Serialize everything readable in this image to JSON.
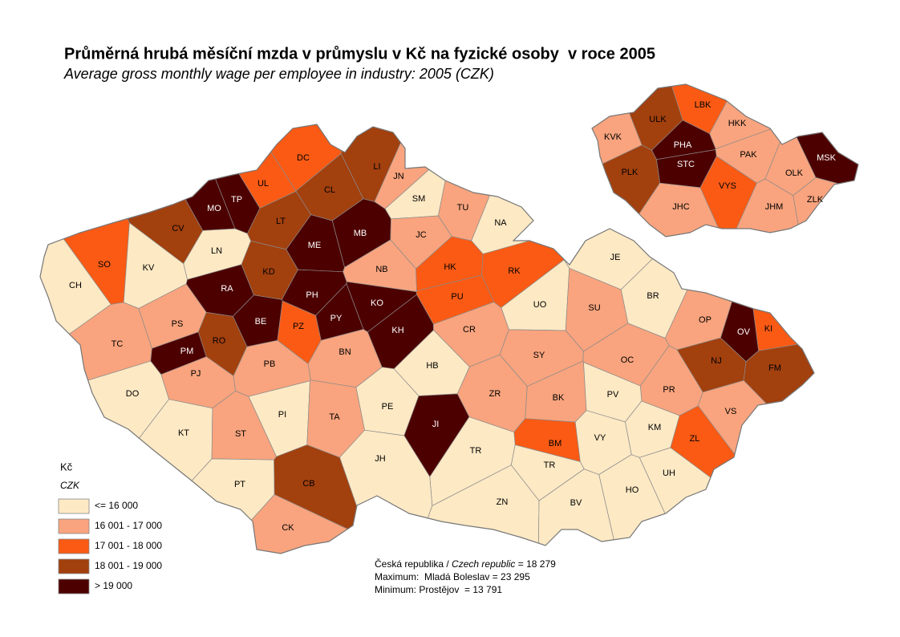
{
  "title": "Průměrná hrubá měsíční mzda v průmyslu v Kč na fyzické osoby  v roce 2005",
  "subtitle": "Average gross monthly wage per employee in industry: 2005 (CZK)",
  "legend": {
    "title": "Kč",
    "subtitle": "CZK",
    "classes": [
      {
        "label": "<= 16 000",
        "color": "#fde9c4"
      },
      {
        "label": "16 001 - 17 000",
        "color": "#f9a47e"
      },
      {
        "label": "17 001 - 18 000",
        "color": "#fa5a14"
      },
      {
        "label": "18 001 - 19 000",
        "color": "#a2400e"
      },
      {
        "label": "> 19 000",
        "color": "#4d0000"
      }
    ]
  },
  "districts": [
    {
      "code": "CH",
      "class": 0
    },
    {
      "code": "SO",
      "class": 2
    },
    {
      "code": "KV",
      "class": 0
    },
    {
      "code": "CV",
      "class": 3
    },
    {
      "code": "MO",
      "class": 4
    },
    {
      "code": "TP",
      "class": 4
    },
    {
      "code": "UL",
      "class": 2
    },
    {
      "code": "DC",
      "class": 2
    },
    {
      "code": "CL",
      "class": 3
    },
    {
      "code": "LI",
      "class": 3
    },
    {
      "code": "JN",
      "class": 1
    },
    {
      "code": "SM",
      "class": 0
    },
    {
      "code": "TU",
      "class": 1
    },
    {
      "code": "NA",
      "class": 0
    },
    {
      "code": "LT",
      "class": 3
    },
    {
      "code": "LN",
      "class": 0
    },
    {
      "code": "ME",
      "class": 4
    },
    {
      "code": "MB",
      "class": 4
    },
    {
      "code": "JC",
      "class": 1
    },
    {
      "code": "KD",
      "class": 3
    },
    {
      "code": "RA",
      "class": 4
    },
    {
      "code": "NB",
      "class": 1
    },
    {
      "code": "HK",
      "class": 2
    },
    {
      "code": "RK",
      "class": 2
    },
    {
      "code": "PH",
      "class": 4
    },
    {
      "code": "KO",
      "class": 4
    },
    {
      "code": "PU",
      "class": 2
    },
    {
      "code": "UO",
      "class": 0
    },
    {
      "code": "SU",
      "class": 1
    },
    {
      "code": "BR",
      "class": 0
    },
    {
      "code": "JE",
      "class": 0
    },
    {
      "code": "PS",
      "class": 1
    },
    {
      "code": "BE",
      "class": 4
    },
    {
      "code": "PZ",
      "class": 2
    },
    {
      "code": "PY",
      "class": 4
    },
    {
      "code": "KH",
      "class": 4
    },
    {
      "code": "CR",
      "class": 1
    },
    {
      "code": "OP",
      "class": 1
    },
    {
      "code": "OV",
      "class": 4
    },
    {
      "code": "KI",
      "class": 2
    },
    {
      "code": "TC",
      "class": 1
    },
    {
      "code": "PM",
      "class": 4
    },
    {
      "code": "RO",
      "class": 3
    },
    {
      "code": "BN",
      "class": 1
    },
    {
      "code": "SY",
      "class": 1
    },
    {
      "code": "OC",
      "class": 1
    },
    {
      "code": "NJ",
      "class": 3
    },
    {
      "code": "FM",
      "class": 3
    },
    {
      "code": "PJ",
      "class": 1
    },
    {
      "code": "PB",
      "class": 1
    },
    {
      "code": "HB",
      "class": 0
    },
    {
      "code": "DO",
      "class": 0
    },
    {
      "code": "PR",
      "class": 1
    },
    {
      "code": "ZR",
      "class": 1
    },
    {
      "code": "BK",
      "class": 1
    },
    {
      "code": "PV",
      "class": 0
    },
    {
      "code": "PE",
      "class": 0
    },
    {
      "code": "PI",
      "class": 0
    },
    {
      "code": "TA",
      "class": 1
    },
    {
      "code": "VS",
      "class": 1
    },
    {
      "code": "KT",
      "class": 0
    },
    {
      "code": "ST",
      "class": 1
    },
    {
      "code": "JI",
      "class": 4
    },
    {
      "code": "KM",
      "class": 0
    },
    {
      "code": "VY",
      "class": 0
    },
    {
      "code": "ZL",
      "class": 2
    },
    {
      "code": "BM",
      "class": 2
    },
    {
      "code": "TR",
      "class": 0
    },
    {
      "code": "JH",
      "class": 0
    },
    {
      "code": "TR",
      "class": 0
    },
    {
      "code": "UH",
      "class": 0
    },
    {
      "code": "PT",
      "class": 0
    },
    {
      "code": "CB",
      "class": 3
    },
    {
      "code": "HO",
      "class": 0
    },
    {
      "code": "ZN",
      "class": 0
    },
    {
      "code": "BV",
      "class": 0
    },
    {
      "code": "CK",
      "class": 1
    }
  ],
  "regions": [
    {
      "code": "KVK",
      "class": 1
    },
    {
      "code": "ULK",
      "class": 3
    },
    {
      "code": "LBK",
      "class": 2
    },
    {
      "code": "HKK",
      "class": 1
    },
    {
      "code": "PHA",
      "class": 4
    },
    {
      "code": "STC",
      "class": 4
    },
    {
      "code": "PAK",
      "class": 1
    },
    {
      "code": "PLK",
      "class": 3
    },
    {
      "code": "VYS",
      "class": 2
    },
    {
      "code": "OLK",
      "class": 1
    },
    {
      "code": "MSK",
      "class": 4
    },
    {
      "code": "JHC",
      "class": 1
    },
    {
      "code": "JHM",
      "class": 1
    },
    {
      "code": "ZLK",
      "class": 1
    }
  ],
  "notes": {
    "country_cz": "Česká republika / ",
    "country_en": "Czech republic",
    "country_value": " = 18 279",
    "maximum": "Maximum:  Mladá Boleslav = 23 295",
    "minimum": "Minimum: Prostějov  = 13 791"
  }
}
